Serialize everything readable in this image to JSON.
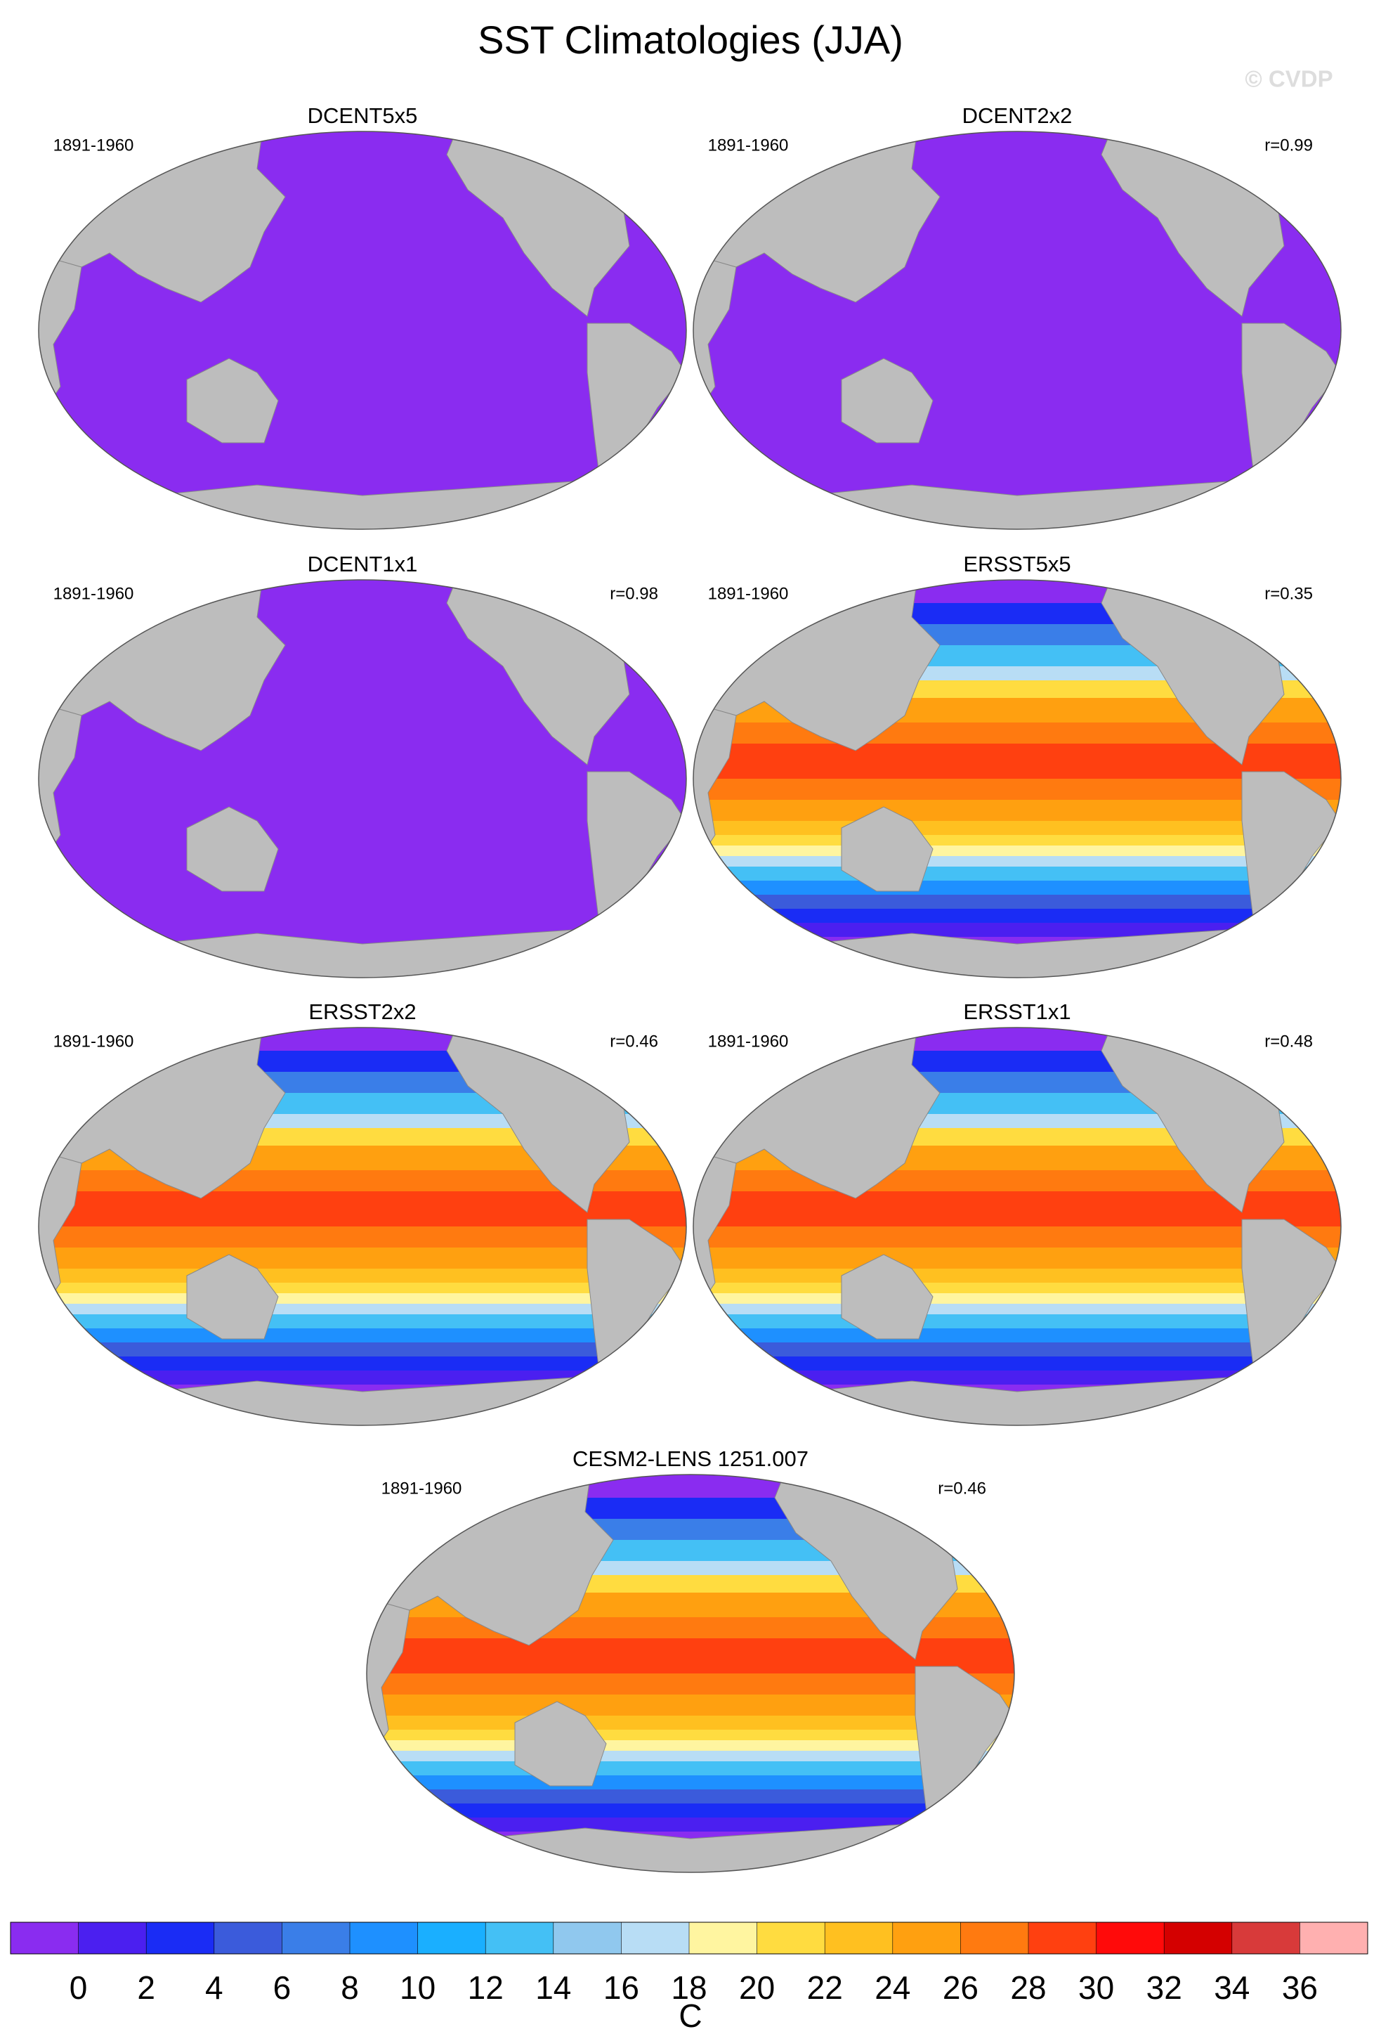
{
  "title": "SST Climatologies (JJA)",
  "watermark": "© CVDP",
  "panels": [
    {
      "title": "DCENT5x5",
      "period": "1891-1960"
    },
    {
      "title": "DCENT2x2",
      "period": "1891-1960",
      "corr": "r=0.99"
    },
    {
      "title": "DCENT1x1",
      "period": "1891-1960",
      "corr": "r=0.98"
    },
    {
      "title": "ERSST5x5",
      "period": "1891-1960",
      "corr": "r=0.35"
    },
    {
      "title": "ERSST2x2",
      "period": "1891-1960",
      "corr": "r=0.46"
    },
    {
      "title": "ERSST1x1",
      "period": "1891-1960",
      "corr": "r=0.48"
    },
    {
      "title": "CESM2-LENS 1251.007",
      "period": "1891-1960",
      "corr": "r=0.46"
    }
  ],
  "colorbar": {
    "label": "C",
    "levels": [
      0,
      2,
      4,
      6,
      8,
      10,
      12,
      14,
      16,
      18,
      20,
      22,
      24,
      26,
      28,
      30,
      32,
      34,
      36
    ],
    "colors": [
      "#8a2cf0",
      "#4b1ff0",
      "#1a2cf5",
      "#3b5bdb",
      "#3a7ee8",
      "#1e90ff",
      "#1aafff",
      "#44c0f5",
      "#90c8ee",
      "#b8ddf5",
      "#fff5a0",
      "#ffdc40",
      "#ffc020",
      "#ffa010",
      "#ff7a10",
      "#ff4010",
      "#ff0a0a",
      "#d40000",
      "#d83a3a",
      "#ffb0b0"
    ]
  }
}
